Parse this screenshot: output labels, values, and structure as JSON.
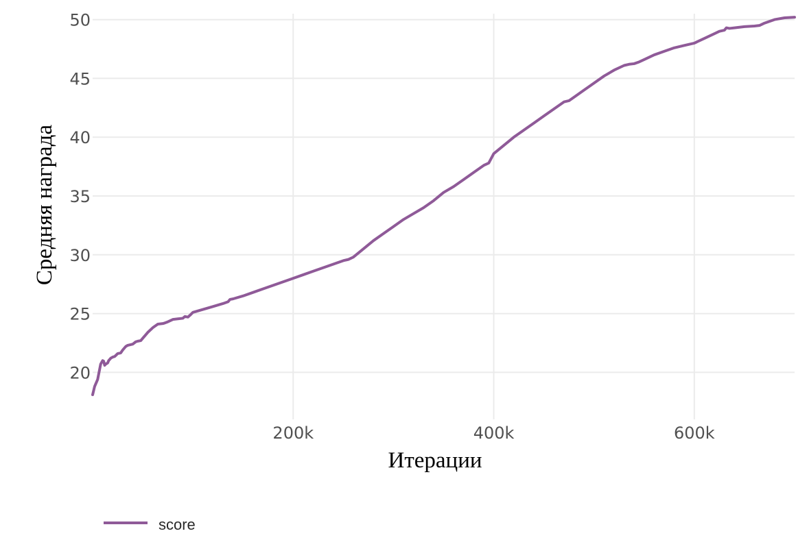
{
  "chart_data": {
    "type": "line",
    "title": "",
    "xlabel": "Итерации",
    "ylabel": "Средняя награда",
    "xlim": [
      0,
      700000
    ],
    "ylim": [
      16,
      50.5
    ],
    "x_ticks": [
      200000,
      400000,
      600000
    ],
    "x_tick_labels": [
      "200k",
      "400k",
      "600k"
    ],
    "y_ticks": [
      20,
      25,
      30,
      35,
      40,
      45,
      50
    ],
    "y_tick_labels": [
      "20",
      "25",
      "30",
      "35",
      "40",
      "45",
      "50"
    ],
    "grid": true,
    "legend_position": "bottom-left",
    "series": [
      {
        "name": "score",
        "color": "#8f5a98",
        "x": [
          0,
          2000,
          5000,
          8000,
          10000,
          11000,
          12000,
          13000,
          15000,
          16000,
          18000,
          20000,
          22000,
          25000,
          28000,
          30000,
          33000,
          35000,
          40000,
          43000,
          45000,
          48000,
          50000,
          52000,
          55000,
          60000,
          65000,
          70000,
          72000,
          75000,
          80000,
          85000,
          90000,
          92000,
          95000,
          97000,
          100000,
          110000,
          120000,
          130000,
          135000,
          137000,
          140000,
          150000,
          160000,
          170000,
          180000,
          190000,
          200000,
          210000,
          220000,
          230000,
          240000,
          250000,
          255000,
          260000,
          270000,
          280000,
          290000,
          300000,
          310000,
          320000,
          330000,
          340000,
          350000,
          360000,
          370000,
          380000,
          390000,
          395000,
          400000,
          410000,
          420000,
          430000,
          440000,
          450000,
          460000,
          470000,
          475000,
          480000,
          490000,
          500000,
          510000,
          520000,
          530000,
          535000,
          540000,
          545000,
          550000,
          560000,
          570000,
          580000,
          590000,
          600000,
          610000,
          620000,
          625000,
          630000,
          632000,
          635000,
          640000,
          650000,
          660000,
          665000,
          670000,
          680000,
          690000,
          700000
        ],
        "values": [
          18.1,
          18.8,
          19.4,
          20.7,
          21.0,
          20.95,
          20.6,
          20.7,
          20.8,
          21.0,
          21.2,
          21.3,
          21.35,
          21.6,
          21.65,
          21.9,
          22.2,
          22.3,
          22.4,
          22.6,
          22.65,
          22.7,
          22.9,
          23.1,
          23.4,
          23.8,
          24.1,
          24.15,
          24.2,
          24.3,
          24.5,
          24.55,
          24.6,
          24.75,
          24.7,
          24.85,
          25.1,
          25.35,
          25.6,
          25.85,
          26.0,
          26.2,
          26.25,
          26.5,
          26.8,
          27.1,
          27.4,
          27.7,
          28.0,
          28.3,
          28.6,
          28.9,
          29.2,
          29.5,
          29.6,
          29.8,
          30.5,
          31.2,
          31.8,
          32.4,
          33.0,
          33.5,
          34.0,
          34.6,
          35.3,
          35.8,
          36.4,
          37.0,
          37.6,
          37.8,
          38.6,
          39.3,
          40.0,
          40.6,
          41.2,
          41.8,
          42.4,
          43.0,
          43.1,
          43.4,
          44.0,
          44.6,
          45.2,
          45.7,
          46.1,
          46.2,
          46.25,
          46.4,
          46.6,
          47.0,
          47.3,
          47.6,
          47.8,
          48.0,
          48.4,
          48.8,
          49.0,
          49.1,
          49.3,
          49.25,
          49.3,
          49.4,
          49.45,
          49.5,
          49.7,
          50.0,
          50.15,
          50.2
        ]
      }
    ]
  }
}
